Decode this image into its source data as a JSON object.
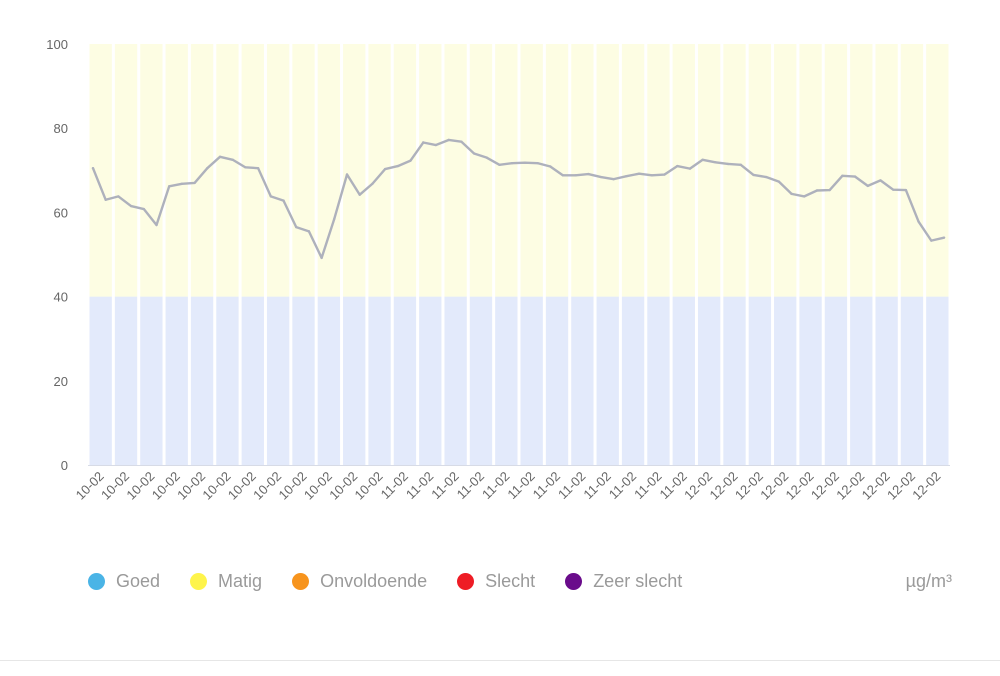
{
  "chart_data": {
    "type": "line",
    "ylim": [
      0,
      100
    ],
    "y_ticks": [
      0,
      20,
      40,
      60,
      80,
      100
    ],
    "bands": [
      {
        "from": 0,
        "to": 40,
        "color": "#e3eafb"
      },
      {
        "from": 40,
        "to": 100,
        "color": "#fdfde3"
      }
    ],
    "x_labels": [
      "10-02",
      "10-02",
      "10-02",
      "10-02",
      "10-02",
      "10-02",
      "10-02",
      "10-02",
      "10-02",
      "10-02",
      "10-02",
      "10-02",
      "11-02",
      "11-02",
      "11-02",
      "11-02",
      "11-02",
      "11-02",
      "11-02",
      "11-02",
      "11-02",
      "11-02",
      "11-02",
      "11-02",
      "12-02",
      "12-02",
      "12-02",
      "12-02",
      "12-02",
      "12-02",
      "12-02",
      "12-02",
      "12-02",
      "12-02"
    ],
    "values": [
      70.5,
      63,
      63.8,
      61.5,
      60.8,
      57,
      66.2,
      66.8,
      67,
      70.5,
      73.2,
      72.5,
      70.7,
      70.5,
      63.8,
      62.8,
      56.5,
      55.5,
      49.2,
      58.5,
      69,
      64.2,
      66.8,
      70.3,
      71,
      72.3,
      76.6,
      76,
      77.2,
      76.8,
      74,
      73,
      71.3,
      71.7,
      71.8,
      71.7,
      70.9,
      68.8,
      68.8,
      69.1,
      68.4,
      67.9,
      68.6,
      69.2,
      68.8,
      69,
      71,
      70.4,
      72.5,
      71.9,
      71.5,
      71.3,
      68.9,
      68.4,
      67.3,
      64.4,
      63.8,
      65.2,
      65.3,
      68.7,
      68.5,
      66.3,
      67.6,
      65.4,
      65.3,
      57.8,
      53.3,
      54
    ],
    "line_color": "#aeb1bc",
    "grid": false,
    "legend": [
      {
        "label": "Goed",
        "color": "#4ab4e6"
      },
      {
        "label": "Matig",
        "color": "#fef44b"
      },
      {
        "label": "Onvoldoende",
        "color": "#f7941d"
      },
      {
        "label": "Slecht",
        "color": "#ee1c25"
      },
      {
        "label": "Zeer slecht",
        "color": "#6a0c8b"
      }
    ],
    "legend_position": "bottom",
    "unit": "µg/m³"
  }
}
